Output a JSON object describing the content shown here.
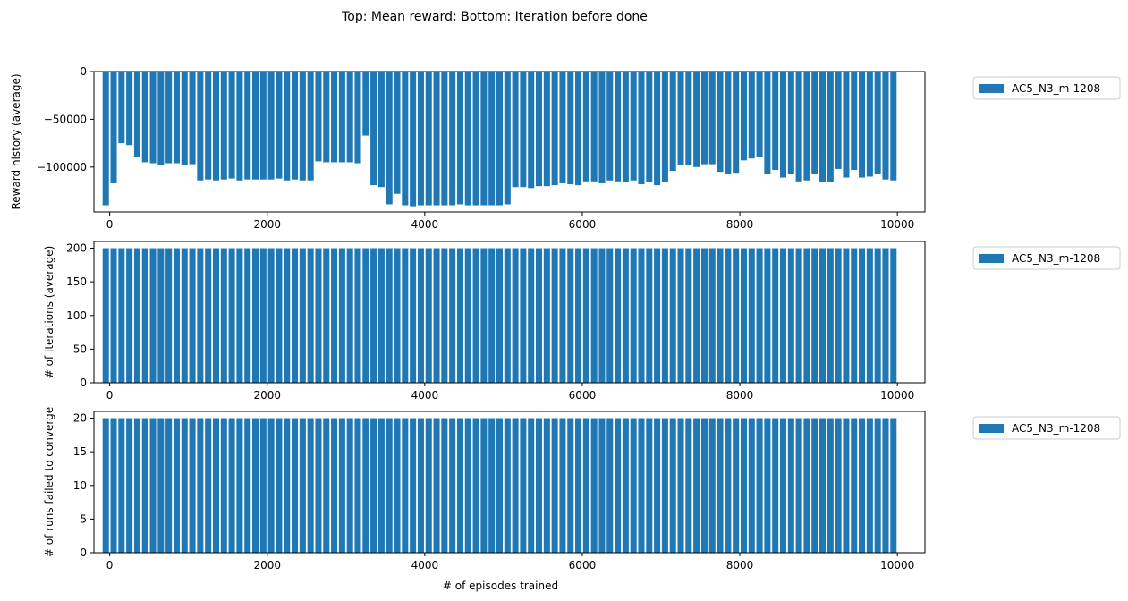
{
  "figure": {
    "suptitle": "Top: Mean reward; Bottom: Iteration before done",
    "bar_color": "#1f77b4"
  },
  "chart_data": [
    {
      "type": "bar",
      "ylabel": "Reward history (average)",
      "xlabel": "",
      "xlim": [
        -200,
        10350
      ],
      "ylim": [
        -147000,
        0
      ],
      "xticks": [
        0,
        2000,
        4000,
        6000,
        8000,
        10000
      ],
      "xtick_labels": [
        "0",
        "2000",
        "4000",
        "6000",
        "8000",
        "10000"
      ],
      "yticks": [
        0,
        -50000,
        -100000
      ],
      "ytick_labels": [
        "0",
        "−50000",
        "−100000"
      ],
      "legend": {
        "position": "outside-right-top",
        "entries": [
          "AC5_N3_m-1208"
        ]
      },
      "series": [
        {
          "name": "AC5_N3_m-1208",
          "x_start": -50,
          "x_step": 100,
          "bar_width": 80,
          "values": [
            -140000,
            -117000,
            -75000,
            -77000,
            -89000,
            -95000,
            -96000,
            -98000,
            -96000,
            -96000,
            -98000,
            -97000,
            -114000,
            -113000,
            -114000,
            -113000,
            -112000,
            -114000,
            -113000,
            -113000,
            -113000,
            -113000,
            -112000,
            -114000,
            -113000,
            -114000,
            -114000,
            -94000,
            -95000,
            -95000,
            -95000,
            -95000,
            -96000,
            -67000,
            -119000,
            -121000,
            -139000,
            -128000,
            -140000,
            -141000,
            -140000,
            -140000,
            -140000,
            -140000,
            -140000,
            -139000,
            -140000,
            -140000,
            -140000,
            -140000,
            -140000,
            -139000,
            -121000,
            -121000,
            -122000,
            -120000,
            -120000,
            -119000,
            -117000,
            -118000,
            -119000,
            -115000,
            -115000,
            -117000,
            -114000,
            -115000,
            -116000,
            -114000,
            -118000,
            -116000,
            -119000,
            -116000,
            -104000,
            -98000,
            -98000,
            -100000,
            -97000,
            -97000,
            -105000,
            -107000,
            -106000,
            -93000,
            -91000,
            -89000,
            -107000,
            -103000,
            -111000,
            -107000,
            -115000,
            -114000,
            -107000,
            -116000,
            -116000,
            -102000,
            -111000,
            -103000,
            -111000,
            -110000,
            -107000,
            -113000,
            -114000
          ]
        }
      ]
    },
    {
      "type": "bar",
      "ylabel": "# of iterations (average)",
      "xlabel": "",
      "xlim": [
        -200,
        10350
      ],
      "ylim": [
        0,
        210
      ],
      "xticks": [
        0,
        2000,
        4000,
        6000,
        8000,
        10000
      ],
      "xtick_labels": [
        "0",
        "2000",
        "4000",
        "6000",
        "8000",
        "10000"
      ],
      "yticks": [
        0,
        50,
        100,
        150,
        200
      ],
      "ytick_labels": [
        "0",
        "50",
        "100",
        "150",
        "200"
      ],
      "legend": {
        "position": "outside-right-top",
        "entries": [
          "AC5_N3_m-1208"
        ]
      },
      "series": [
        {
          "name": "AC5_N3_m-1208",
          "x_start": -50,
          "x_step": 100,
          "bar_width": 80,
          "values": [
            200,
            200,
            200,
            200,
            200,
            200,
            200,
            200,
            200,
            200,
            200,
            200,
            200,
            200,
            200,
            200,
            200,
            200,
            200,
            200,
            200,
            200,
            200,
            200,
            200,
            200,
            200,
            200,
            200,
            200,
            200,
            200,
            200,
            200,
            200,
            200,
            200,
            200,
            200,
            200,
            200,
            200,
            200,
            200,
            200,
            200,
            200,
            200,
            200,
            200,
            200,
            200,
            200,
            200,
            200,
            200,
            200,
            200,
            200,
            200,
            200,
            200,
            200,
            200,
            200,
            200,
            200,
            200,
            200,
            200,
            200,
            200,
            200,
            200,
            200,
            200,
            200,
            200,
            200,
            200,
            200,
            200,
            200,
            200,
            200,
            200,
            200,
            200,
            200,
            200,
            200,
            200,
            200,
            200,
            200,
            200,
            200,
            200,
            200,
            200,
            200
          ]
        }
      ]
    },
    {
      "type": "bar",
      "ylabel": "# of runs failed to converge",
      "xlabel": "# of episodes trained",
      "xlim": [
        -200,
        10350
      ],
      "ylim": [
        0,
        21
      ],
      "xticks": [
        0,
        2000,
        4000,
        6000,
        8000,
        10000
      ],
      "xtick_labels": [
        "0",
        "2000",
        "4000",
        "6000",
        "8000",
        "10000"
      ],
      "yticks": [
        0,
        5,
        10,
        15,
        20
      ],
      "ytick_labels": [
        "0",
        "5",
        "10",
        "15",
        "20"
      ],
      "legend": {
        "position": "outside-right-top",
        "entries": [
          "AC5_N3_m-1208"
        ]
      },
      "series": [
        {
          "name": "AC5_N3_m-1208",
          "x_start": -50,
          "x_step": 100,
          "bar_width": 80,
          "values": [
            20,
            20,
            20,
            20,
            20,
            20,
            20,
            20,
            20,
            20,
            20,
            20,
            20,
            20,
            20,
            20,
            20,
            20,
            20,
            20,
            20,
            20,
            20,
            20,
            20,
            20,
            20,
            20,
            20,
            20,
            20,
            20,
            20,
            20,
            20,
            20,
            20,
            20,
            20,
            20,
            20,
            20,
            20,
            20,
            20,
            20,
            20,
            20,
            20,
            20,
            20,
            20,
            20,
            20,
            20,
            20,
            20,
            20,
            20,
            20,
            20,
            20,
            20,
            20,
            20,
            20,
            20,
            20,
            20,
            20,
            20,
            20,
            20,
            20,
            20,
            20,
            20,
            20,
            20,
            20,
            20,
            20,
            20,
            20,
            20,
            20,
            20,
            20,
            20,
            20,
            20,
            20,
            20,
            20,
            20,
            20,
            20,
            20,
            20,
            20,
            20
          ]
        }
      ]
    }
  ]
}
